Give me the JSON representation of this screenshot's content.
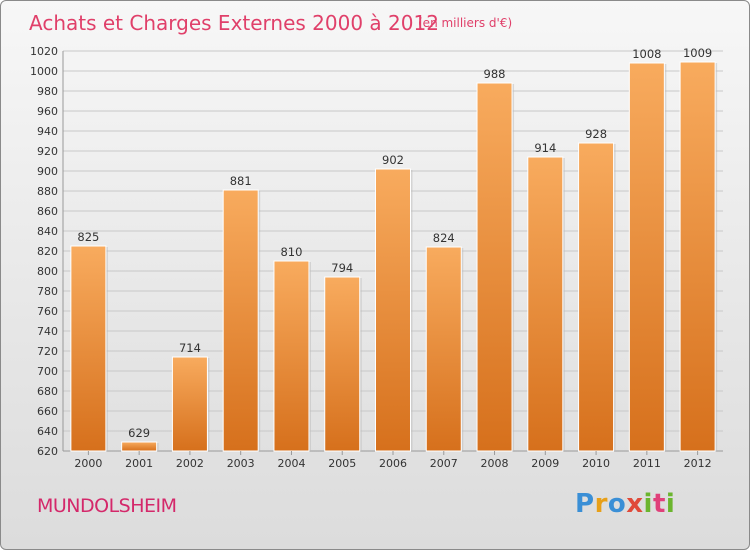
{
  "title": "Achats et Charges Externes 2000 à 2012",
  "subtitle": "(en milliers d'€)",
  "commune": "MUNDOLSHEIM",
  "logo_text": "Proxiti",
  "colors": {
    "bar_top": "#f7a85c",
    "bar_bottom": "#d9731e",
    "title": "#e0406a",
    "commune": "#d4286a"
  },
  "chart_data": {
    "type": "bar",
    "title": "Achats et Charges Externes 2000 à 2012",
    "subtitle": "(en milliers d'€)",
    "xlabel": "",
    "ylabel": "",
    "categories": [
      "2000",
      "2001",
      "2002",
      "2003",
      "2004",
      "2005",
      "2006",
      "2007",
      "2008",
      "2009",
      "2010",
      "2011",
      "2012"
    ],
    "values": [
      825,
      629,
      714,
      881,
      810,
      794,
      902,
      824,
      988,
      914,
      928,
      1008,
      1009
    ],
    "value_labels": [
      "825",
      "629",
      "714",
      "881",
      "810",
      "794",
      "902",
      "824",
      "988",
      "914",
      "928",
      "1008",
      "1009"
    ],
    "ylim": [
      620,
      1020
    ],
    "yticks": [
      620,
      640,
      660,
      680,
      700,
      720,
      740,
      760,
      780,
      800,
      820,
      840,
      860,
      880,
      900,
      920,
      940,
      960,
      980,
      1000,
      1020
    ],
    "grid": true,
    "legend": "none"
  }
}
